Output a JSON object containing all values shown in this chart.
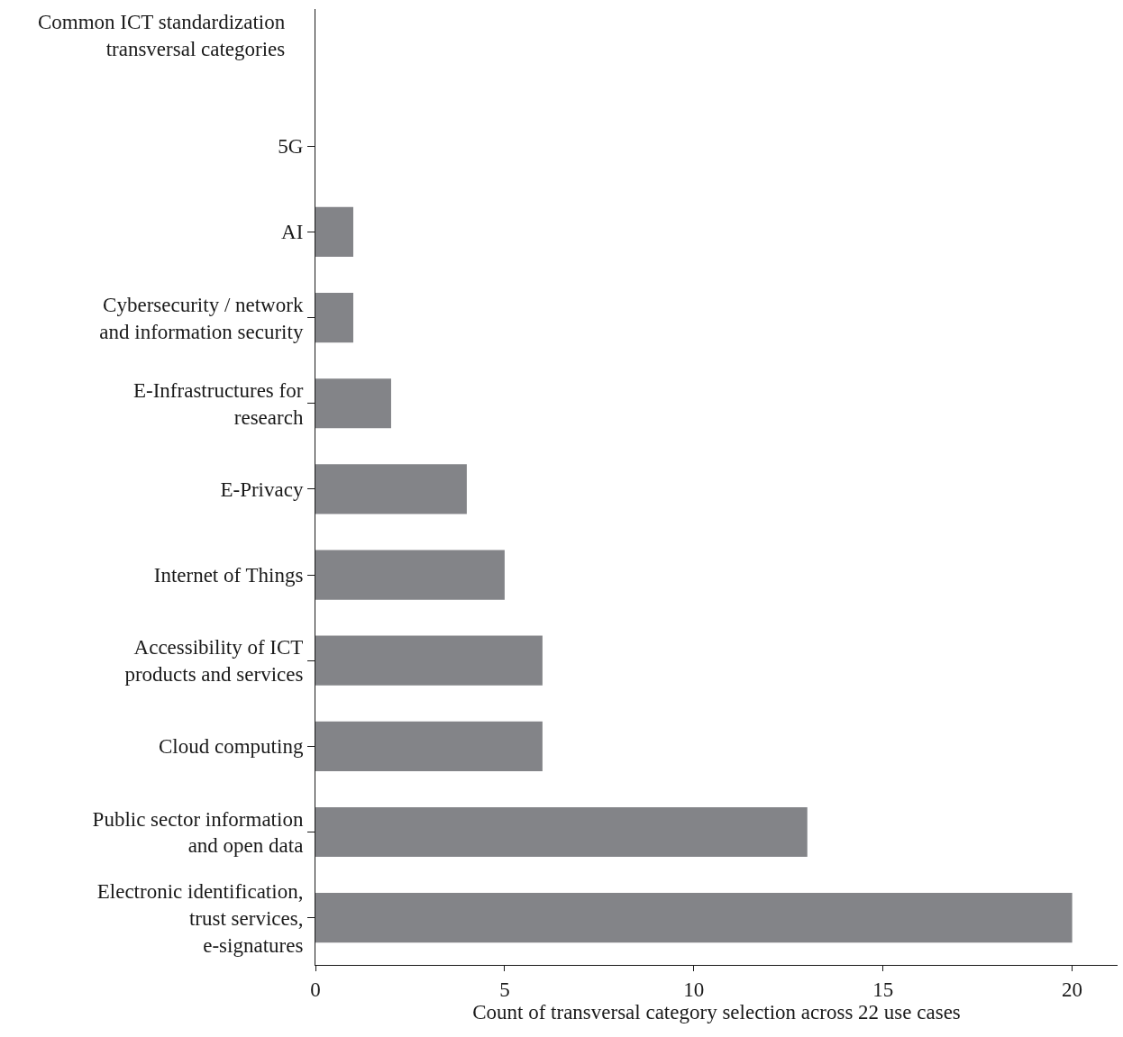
{
  "chart_data": {
    "type": "bar",
    "orientation": "horizontal",
    "ylabel": "Common ICT standardization transversal categories",
    "xlabel": "Count of transversal category selection across 22 use cases",
    "categories": [
      "5G",
      "AI",
      "Cybersecurity / network and information security",
      "E-Infrastructures for research",
      "E-Privacy",
      "Internet of Things",
      "Accessibility of ICT products and services",
      "Cloud computing",
      "Public sector information and open data",
      "Electronic identification, trust services, e-signatures"
    ],
    "values": [
      0,
      1,
      1,
      2,
      4,
      5,
      6,
      6,
      13,
      20
    ],
    "color": "#838488",
    "xlim": [
      0,
      21.2
    ],
    "xticks": [
      0,
      5,
      10,
      15,
      20
    ],
    "grid": false
  }
}
